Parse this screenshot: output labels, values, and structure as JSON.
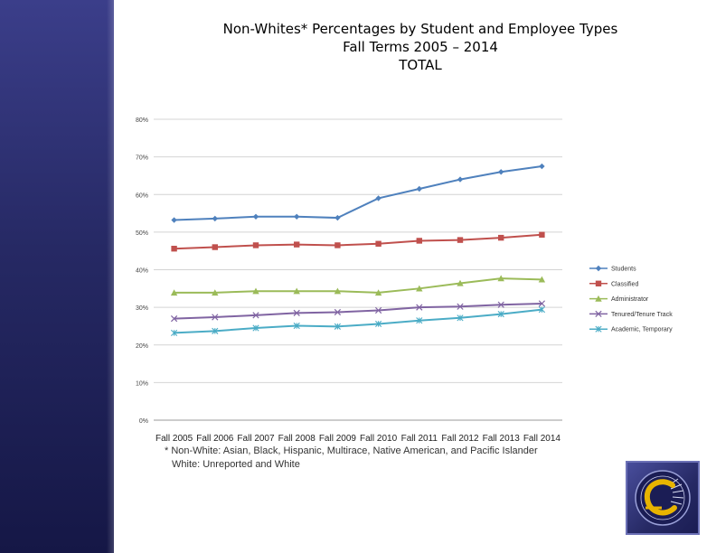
{
  "title": {
    "line1": "Non-Whites* Percentages by Student and Employee Types",
    "line2": "Fall Terms 2005 – 2014",
    "line3": "TOTAL"
  },
  "footnote": {
    "line1": "* Non-White: Asian, Black, Hispanic, Multirace, Native American, and Pacific Islander",
    "line2": "White: Unreported and White"
  },
  "logo": {
    "icon": "college-seal-c-icon"
  },
  "colors": {
    "sidebar": "#262964",
    "students": "#4F81BD",
    "classified": "#C0504D",
    "administrator": "#9BBB59",
    "tenured": "#8064A2",
    "academic": "#4BACC6"
  },
  "chart_data": {
    "type": "line",
    "title": "",
    "xlabel": "",
    "ylabel": "",
    "categories": [
      "Fall 2005",
      "Fall 2006",
      "Fall 2007",
      "Fall 2008",
      "Fall 2009",
      "Fall 2010",
      "Fall 2011",
      "Fall 2012",
      "Fall 2013",
      "Fall 2014"
    ],
    "ylim": [
      0,
      80
    ],
    "yticks": [
      0,
      10,
      20,
      30,
      40,
      50,
      60,
      70,
      80
    ],
    "ytick_labels": [
      "0%",
      "10%",
      "20%",
      "30%",
      "40%",
      "50%",
      "60%",
      "70%",
      "80%"
    ],
    "grid": true,
    "legend_position": "right",
    "series": [
      {
        "name": "Students",
        "color": "#4F81BD",
        "marker": "diamond",
        "values": [
          53.2,
          53.6,
          54.1,
          54.1,
          53.8,
          59.0,
          61.5,
          64.0,
          66.0,
          67.5
        ]
      },
      {
        "name": "Classified",
        "color": "#C0504D",
        "marker": "square",
        "values": [
          45.6,
          46.0,
          46.5,
          46.7,
          46.5,
          46.9,
          47.7,
          47.9,
          48.5,
          49.3
        ]
      },
      {
        "name": "Administrator",
        "color": "#9BBB59",
        "marker": "triangle",
        "values": [
          33.9,
          33.9,
          34.3,
          34.3,
          34.3,
          33.9,
          35.0,
          36.4,
          37.7,
          37.4
        ]
      },
      {
        "name": "Tenured/Tenure Track",
        "color": "#8064A2",
        "marker": "x",
        "values": [
          27.0,
          27.4,
          27.9,
          28.5,
          28.7,
          29.2,
          30.0,
          30.2,
          30.7,
          31.0
        ]
      },
      {
        "name": "Academic, Temporary",
        "color": "#4BACC6",
        "marker": "star",
        "values": [
          23.2,
          23.7,
          24.5,
          25.1,
          24.9,
          25.6,
          26.5,
          27.2,
          28.2,
          29.4
        ]
      }
    ]
  }
}
